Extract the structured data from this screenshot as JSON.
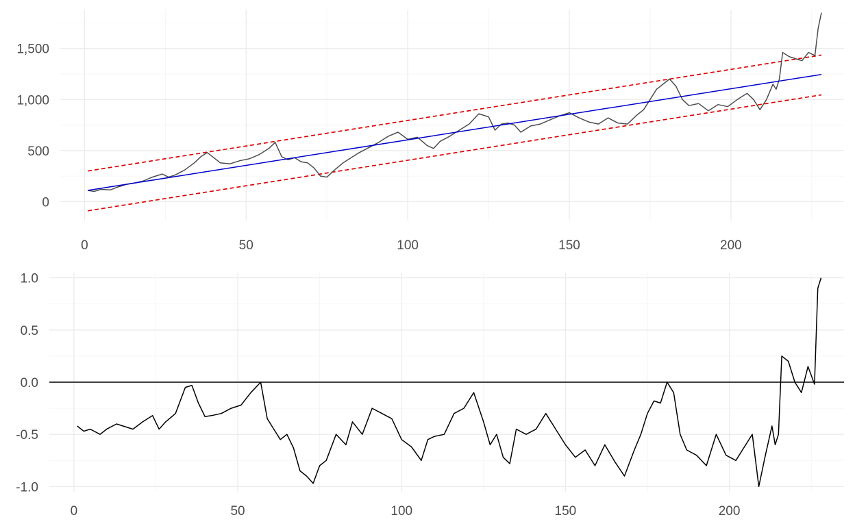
{
  "chart_data": [
    {
      "type": "line",
      "title": "",
      "xlabel": "",
      "ylabel": "",
      "xlim": [
        -7.5,
        235
      ],
      "ylim": [
        -185,
        1880
      ],
      "x_ticks": [
        0,
        50,
        100,
        150,
        200
      ],
      "x_tick_labels": [
        "0",
        "50",
        "100",
        "150",
        "200"
      ],
      "y_ticks": [
        0,
        500,
        1000,
        1500
      ],
      "y_tick_labels": [
        "0",
        "500",
        "1,000",
        "1,500"
      ],
      "grid": true,
      "legend": "none",
      "series": [
        {
          "role": "observed",
          "color": "#4d4d4d",
          "style": "solid",
          "x": [
            1,
            3,
            5,
            8,
            10,
            13,
            15,
            18,
            21,
            24,
            26,
            28,
            31,
            34,
            36,
            38,
            40,
            42,
            45,
            48,
            51,
            54,
            57,
            59,
            61,
            63,
            65,
            67,
            69,
            71,
            73,
            75,
            77,
            80,
            83,
            85,
            88,
            91,
            94,
            97,
            100,
            103,
            106,
            108,
            110,
            113,
            116,
            119,
            122,
            125,
            127,
            129,
            131,
            133,
            135,
            138,
            141,
            144,
            147,
            150,
            153,
            156,
            159,
            162,
            165,
            168,
            171,
            173,
            175,
            177,
            179,
            181,
            183,
            185,
            187,
            190,
            193,
            196,
            199,
            202,
            205,
            207,
            209,
            211,
            213,
            214,
            215,
            216,
            218,
            220,
            222,
            224,
            226,
            227,
            228
          ],
          "y": [
            110,
            100,
            120,
            115,
            140,
            170,
            180,
            200,
            240,
            270,
            240,
            260,
            310,
            380,
            440,
            480,
            430,
            380,
            370,
            400,
            420,
            460,
            520,
            580,
            440,
            410,
            430,
            390,
            380,
            330,
            250,
            240,
            300,
            380,
            440,
            480,
            530,
            580,
            640,
            680,
            610,
            630,
            550,
            520,
            590,
            640,
            700,
            760,
            860,
            830,
            700,
            760,
            770,
            750,
            680,
            740,
            760,
            800,
            840,
            870,
            820,
            780,
            760,
            820,
            770,
            760,
            850,
            900,
            1000,
            1100,
            1150,
            1200,
            1130,
            1000,
            940,
            960,
            890,
            950,
            930,
            1000,
            1060,
            1000,
            900,
            1000,
            1150,
            1100,
            1200,
            1460,
            1420,
            1400,
            1380,
            1460,
            1430,
            1700,
            1850
          ]
        },
        {
          "role": "trend",
          "color": "#0000cc",
          "style": "solid",
          "x": [
            1,
            228
          ],
          "y": [
            110,
            1245
          ]
        },
        {
          "role": "upper-band",
          "color": "#dd0000",
          "style": "dashed",
          "x": [
            1,
            228
          ],
          "y": [
            300,
            1435
          ]
        },
        {
          "role": "lower-band",
          "color": "#dd0000",
          "style": "dashed",
          "x": [
            1,
            228
          ],
          "y": [
            -90,
            1045
          ]
        }
      ]
    },
    {
      "type": "line",
      "title": "",
      "xlabel": "",
      "ylabel": "",
      "xlim": [
        -7.5,
        235
      ],
      "ylim": [
        -1.05,
        1.05
      ],
      "x_ticks": [
        0,
        50,
        100,
        150,
        200
      ],
      "x_tick_labels": [
        "0",
        "50",
        "100",
        "150",
        "200"
      ],
      "y_ticks": [
        -1.0,
        -0.5,
        0.0,
        0.5,
        1.0
      ],
      "y_tick_labels": [
        "-1.0",
        "-0.5",
        "0.0",
        "0.5",
        "1.0"
      ],
      "grid": true,
      "legend": "none",
      "reference_line": {
        "y": 0,
        "color": "#000000"
      },
      "series": [
        {
          "role": "normalized-deviation",
          "color": "#000000",
          "style": "solid",
          "x": [
            1,
            3,
            5,
            8,
            10,
            13,
            15,
            18,
            21,
            24,
            26,
            28,
            31,
            34,
            36,
            38,
            40,
            42,
            45,
            48,
            51,
            54,
            57,
            59,
            61,
            63,
            65,
            67,
            69,
            71,
            73,
            75,
            77,
            80,
            83,
            85,
            88,
            91,
            94,
            97,
            100,
            103,
            106,
            108,
            110,
            113,
            116,
            119,
            122,
            125,
            127,
            129,
            131,
            133,
            135,
            138,
            141,
            144,
            147,
            150,
            153,
            156,
            159,
            162,
            165,
            168,
            171,
            173,
            175,
            177,
            179,
            181,
            183,
            185,
            187,
            190,
            193,
            196,
            199,
            202,
            205,
            207,
            209,
            211,
            213,
            214,
            215,
            216,
            218,
            220,
            222,
            224,
            226,
            227,
            228
          ],
          "y": [
            -0.42,
            -0.47,
            -0.45,
            -0.5,
            -0.45,
            -0.4,
            -0.42,
            -0.45,
            -0.38,
            -0.32,
            -0.45,
            -0.38,
            -0.3,
            -0.05,
            -0.03,
            -0.2,
            -0.33,
            -0.32,
            -0.3,
            -0.25,
            -0.22,
            -0.1,
            0.0,
            -0.35,
            -0.45,
            -0.55,
            -0.5,
            -0.63,
            -0.85,
            -0.9,
            -0.97,
            -0.8,
            -0.75,
            -0.5,
            -0.6,
            -0.38,
            -0.5,
            -0.25,
            -0.3,
            -0.35,
            -0.55,
            -0.62,
            -0.75,
            -0.55,
            -0.52,
            -0.5,
            -0.3,
            -0.25,
            -0.1,
            -0.38,
            -0.6,
            -0.5,
            -0.72,
            -0.78,
            -0.45,
            -0.5,
            -0.45,
            -0.3,
            -0.45,
            -0.6,
            -0.72,
            -0.65,
            -0.8,
            -0.6,
            -0.76,
            -0.9,
            -0.65,
            -0.5,
            -0.3,
            -0.18,
            -0.2,
            0.0,
            -0.1,
            -0.5,
            -0.65,
            -0.7,
            -0.8,
            -0.5,
            -0.7,
            -0.75,
            -0.6,
            -0.5,
            -1.0,
            -0.7,
            -0.42,
            -0.6,
            -0.5,
            0.25,
            0.2,
            0.0,
            -0.1,
            0.15,
            -0.02,
            0.9,
            1.0
          ]
        }
      ]
    }
  ]
}
